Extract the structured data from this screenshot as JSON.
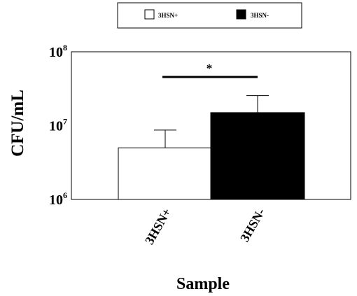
{
  "chart_data": {
    "type": "bar",
    "title": "",
    "xlabel": "Sample",
    "ylabel": "CFU/mL",
    "y_scale": "log",
    "ylim": [
      1000000,
      100000000
    ],
    "y_ticks": [
      {
        "value": 1000000,
        "base": "10",
        "exp": "6"
      },
      {
        "value": 10000000,
        "base": "10",
        "exp": "7"
      },
      {
        "value": 100000000,
        "base": "10",
        "exp": "8"
      }
    ],
    "categories": [
      "3HSN+",
      "3HSN-"
    ],
    "values": [
      5000000,
      15000000
    ],
    "error_upper": [
      8700000,
      25500000
    ],
    "bar_colors": [
      "#ffffff",
      "#000000"
    ],
    "legend": {
      "placement": "top-center",
      "entries": [
        {
          "label": "3HSN+",
          "color": "#ffffff"
        },
        {
          "label": "3HSN-",
          "color": "#000000"
        }
      ]
    },
    "significance": {
      "label": "*",
      "between": [
        "3HSN+",
        "3HSN-"
      ]
    },
    "grid": false
  }
}
